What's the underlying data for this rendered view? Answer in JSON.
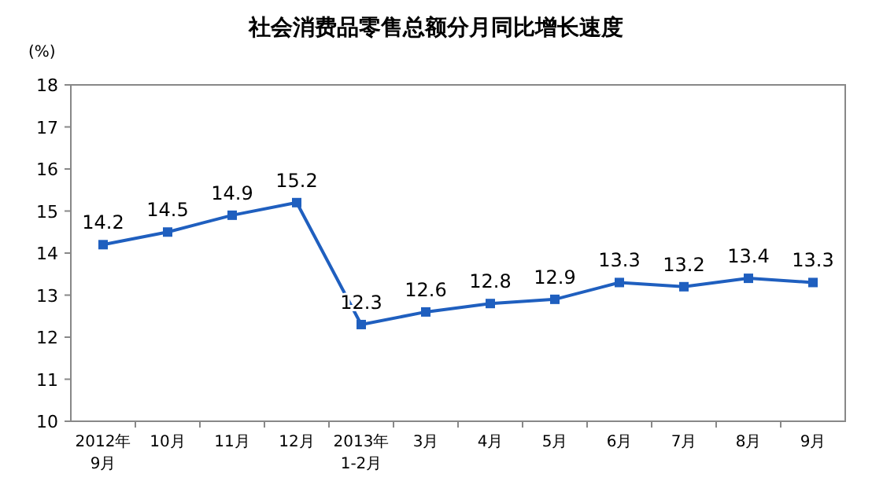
{
  "chart_data": {
    "type": "line",
    "title": "社会消费品零售总额分月同比增长速度",
    "ylabel": "(%)",
    "categories": [
      "2012年\n9月",
      "10月",
      "11月",
      "12月",
      "2013年\n1-2月",
      "3月",
      "4月",
      "5月",
      "6月",
      "7月",
      "8月",
      "9月"
    ],
    "series": [
      {
        "color": "#1f5fbf",
        "values": [
          14.2,
          14.5,
          14.9,
          15.2,
          12.3,
          12.6,
          12.8,
          12.9,
          13.3,
          13.2,
          13.4,
          13.3
        ]
      }
    ],
    "ylim": [
      10,
      18
    ],
    "yticks": [
      10,
      11,
      12,
      13,
      14,
      15,
      16,
      17,
      18
    ],
    "grid": false,
    "marker": "square",
    "line_style": "solid",
    "data_labels": true
  }
}
